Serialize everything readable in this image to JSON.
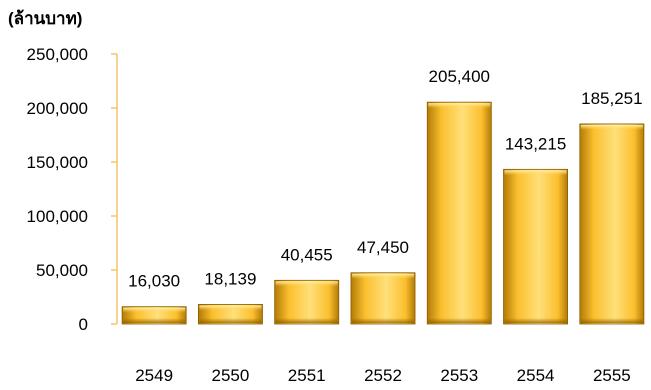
{
  "chart_data": {
    "type": "bar",
    "unit_label": "(ล้านบาท)",
    "categories": [
      "2549",
      "2550",
      "2551",
      "2552",
      "2553",
      "2554",
      "2555"
    ],
    "values": [
      16030,
      18139,
      40455,
      47450,
      205400,
      143215,
      185251
    ],
    "data_labels": [
      "16,030",
      "18,139",
      "40,455",
      "47,450",
      "205,400",
      "143,215",
      "185,251"
    ],
    "ylim": [
      0,
      250000
    ],
    "yticks": [
      0,
      50000,
      100000,
      150000,
      200000,
      250000
    ],
    "ytick_labels": [
      "0",
      "50,000",
      "100,000",
      "150,000",
      "200,000",
      "250,000"
    ],
    "grid": false,
    "legend": "none",
    "colors": {
      "bar_light": "#FFE07A",
      "bar_mid": "#FBBF2E",
      "bar_dark": "#B37B05",
      "bar_edge": "#8A5C00",
      "axis": "#F2C46B",
      "text": "#000000"
    }
  }
}
